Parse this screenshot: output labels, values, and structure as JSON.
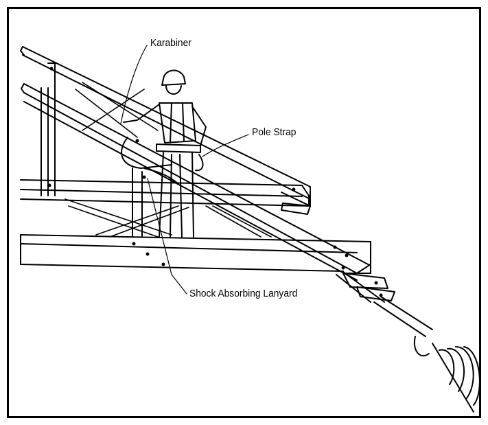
{
  "labels": {
    "karabiner": "Karabiner",
    "pole_strap": "Pole Strap",
    "lanyard": "Shock Absorbing Lanyard"
  },
  "colors": {
    "ink": "#000000",
    "paper": "#ffffff"
  }
}
